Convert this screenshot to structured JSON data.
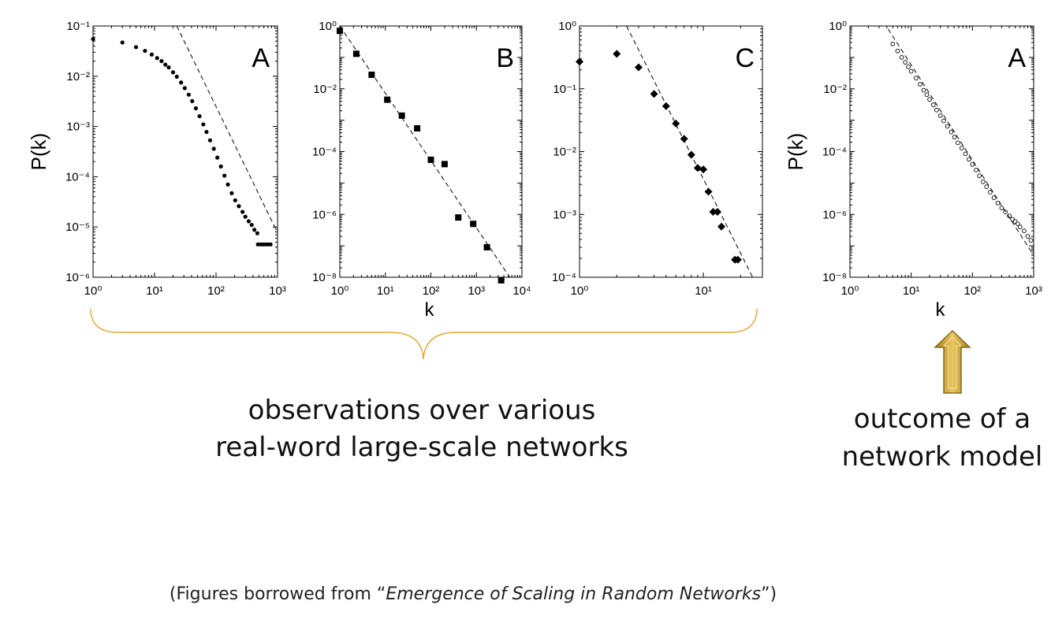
{
  "colors": {
    "brace": "#e6a530",
    "arrow_fill": "#c9a64a",
    "arrow_stroke": "#8a6a12",
    "marker": "#000000"
  },
  "captions": {
    "observations": [
      "observations over  various",
      "real-word large-scale networks"
    ],
    "model": [
      "outcome of a",
      "network model"
    ],
    "source_prefix": "(Figures borrowed from “",
    "source_title": "Emergence of Scaling in Random Networks",
    "source_suffix": "”)"
  },
  "chart_data": [
    {
      "type": "scatter",
      "panel_label": "A",
      "xlabel": "",
      "ylabel": "P(k)",
      "xscale": "log",
      "yscale": "log",
      "xlim": [
        1,
        1000
      ],
      "ylim": [
        1e-06,
        0.1
      ],
      "x_tick_exponents": [
        0,
        1,
        2,
        3
      ],
      "y_tick_exponents": [
        -6,
        -5,
        -4,
        -3,
        -2,
        -1
      ],
      "marker": "filled-circle",
      "series": [
        {
          "values": [
            [
              1,
              0.055
            ],
            [
              3,
              0.047
            ],
            [
              5,
              0.038
            ],
            [
              7,
              0.032
            ],
            [
              9,
              0.027
            ],
            [
              11,
              0.023
            ],
            [
              13,
              0.02
            ],
            [
              15,
              0.017
            ],
            [
              17,
              0.015
            ],
            [
              20,
              0.012
            ],
            [
              23,
              0.0098
            ],
            [
              27,
              0.0075
            ],
            [
              31,
              0.0058
            ],
            [
              36,
              0.0043
            ],
            [
              41,
              0.0032
            ],
            [
              47,
              0.0023
            ],
            [
              54,
              0.0016
            ],
            [
              62,
              0.0011
            ],
            [
              70,
              0.00078
            ],
            [
              80,
              0.00053
            ],
            [
              92,
              0.00036
            ],
            [
              105,
              0.00024
            ],
            [
              120,
              0.00016
            ],
            [
              137,
              0.000105
            ],
            [
              156,
              7e-05
            ],
            [
              180,
              4.7e-05
            ],
            [
              205,
              3.4e-05
            ],
            [
              235,
              2.6e-05
            ],
            [
              270,
              2e-05
            ],
            [
              300,
              1.6e-05
            ],
            [
              340,
              1.3e-05
            ],
            [
              380,
              1.1e-05
            ],
            [
              420,
              8.8e-06
            ],
            [
              470,
              7.5e-06
            ],
            [
              480,
              4.5e-06
            ],
            [
              530,
              4.5e-06
            ],
            [
              580,
              4.5e-06
            ],
            [
              640,
              4.5e-06
            ],
            [
              700,
              4.5e-06
            ],
            [
              770,
              4.5e-06
            ]
          ]
        },
        {
          "name": "",
          "style": "dashed",
          "values": [
            [
              23,
              0.1
            ],
            [
              1000,
              7.7e-06
            ]
          ]
        }
      ]
    },
    {
      "type": "scatter",
      "panel_label": "B",
      "xlabel": "k",
      "ylabel": "",
      "xscale": "log",
      "yscale": "log",
      "xlim": [
        1,
        10000
      ],
      "ylim": [
        1e-08,
        1
      ],
      "x_tick_exponents": [
        0,
        1,
        2,
        3,
        4
      ],
      "y_tick_exponents": [
        -8,
        -6,
        -4,
        -2,
        0
      ],
      "marker": "filled-square",
      "series": [
        {
          "values": [
            [
              1,
              0.7
            ],
            [
              2.3,
              0.13
            ],
            [
              5,
              0.028
            ],
            [
              11,
              0.0045
            ],
            [
              23,
              0.0014
            ],
            [
              50,
              0.00055
            ],
            [
              100,
              5.5e-05
            ],
            [
              200,
              4e-05
            ],
            [
              400,
              8e-07
            ],
            [
              850,
              5e-07
            ],
            [
              1700,
              9e-08
            ],
            [
              3500,
              8e-09
            ]
          ]
        },
        {
          "name": "",
          "style": "dashed",
          "values": [
            [
              1,
              1
            ],
            [
              6000,
              8e-09
            ]
          ]
        }
      ]
    },
    {
      "type": "scatter",
      "panel_label": "C",
      "xlabel": "",
      "ylabel": "",
      "xscale": "log",
      "yscale": "log",
      "xlim": [
        1,
        30
      ],
      "ylim": [
        0.0001,
        1
      ],
      "x_tick_exponents": [
        0,
        1
      ],
      "y_tick_exponents": [
        -4,
        -3,
        -2,
        -1,
        0
      ],
      "marker": "filled-diamond",
      "series": [
        {
          "values": [
            [
              1,
              0.27
            ],
            [
              2,
              0.36
            ],
            [
              3,
              0.22
            ],
            [
              4,
              0.083
            ],
            [
              5,
              0.053
            ],
            [
              6,
              0.028
            ],
            [
              7,
              0.016
            ],
            [
              8,
              0.0089
            ],
            [
              9,
              0.0055
            ],
            [
              10,
              0.0052
            ],
            [
              11,
              0.0023
            ],
            [
              12,
              0.0011
            ],
            [
              13,
              0.0011
            ],
            [
              14,
              0.00064
            ],
            [
              18,
              0.00019
            ],
            [
              19,
              0.00019
            ]
          ]
        },
        {
          "name": "",
          "style": "dashed",
          "values": [
            [
              2.4,
              1
            ],
            [
              25,
              0.0001
            ]
          ]
        }
      ]
    },
    {
      "type": "scatter",
      "panel_label": "A",
      "xlabel": "k",
      "ylabel": "P(k)",
      "xscale": "log",
      "yscale": "log",
      "xlim": [
        1,
        1000
      ],
      "ylim": [
        1e-08,
        1
      ],
      "x_tick_exponents": [
        0,
        1,
        2,
        3
      ],
      "y_tick_exponents": [
        -8,
        -6,
        -4,
        -2,
        0
      ],
      "marker": "open-circle",
      "series": [
        {
          "values": [
            [
              5,
              0.27
            ],
            [
              6,
              0.16
            ],
            [
              7,
              0.1
            ],
            [
              8,
              0.07
            ],
            [
              9,
              0.05
            ],
            [
              10,
              0.036
            ],
            [
              12,
              0.022
            ],
            [
              14,
              0.014
            ],
            [
              16,
              0.009
            ],
            [
              18,
              0.0065
            ],
            [
              20,
              0.0046
            ],
            [
              23,
              0.0031
            ],
            [
              26,
              0.0021
            ],
            [
              30,
              0.0014
            ],
            [
              34,
              0.00095
            ],
            [
              39,
              0.00064
            ],
            [
              45,
              0.00042
            ],
            [
              51,
              0.00029
            ],
            [
              58,
              0.00019
            ],
            [
              67,
              0.00013
            ],
            [
              77,
              8.5e-05
            ],
            [
              88,
              5.7e-05
            ],
            [
              100,
              3.9e-05
            ],
            [
              115,
              2.6e-05
            ],
            [
              130,
              1.7e-05
            ],
            [
              150,
              1.1e-05
            ],
            [
              170,
              7.6e-06
            ],
            [
              195,
              5.1e-06
            ],
            [
              225,
              3.4e-06
            ],
            [
              260,
              2.3e-06
            ],
            [
              300,
              1.6e-06
            ],
            [
              345,
              1.2e-06
            ],
            [
              400,
              9e-07
            ],
            [
              450,
              7e-07
            ],
            [
              500,
              6e-07
            ],
            [
              550,
              5e-07
            ],
            [
              600,
              4e-07
            ],
            [
              700,
              3e-07
            ],
            [
              800,
              2e-07
            ],
            [
              900,
              1.5e-07
            ]
          ]
        },
        {
          "name": "",
          "style": "dashed",
          "values": [
            [
              4.2,
              0.8
            ],
            [
              1000,
              5e-08
            ]
          ]
        }
      ]
    }
  ]
}
